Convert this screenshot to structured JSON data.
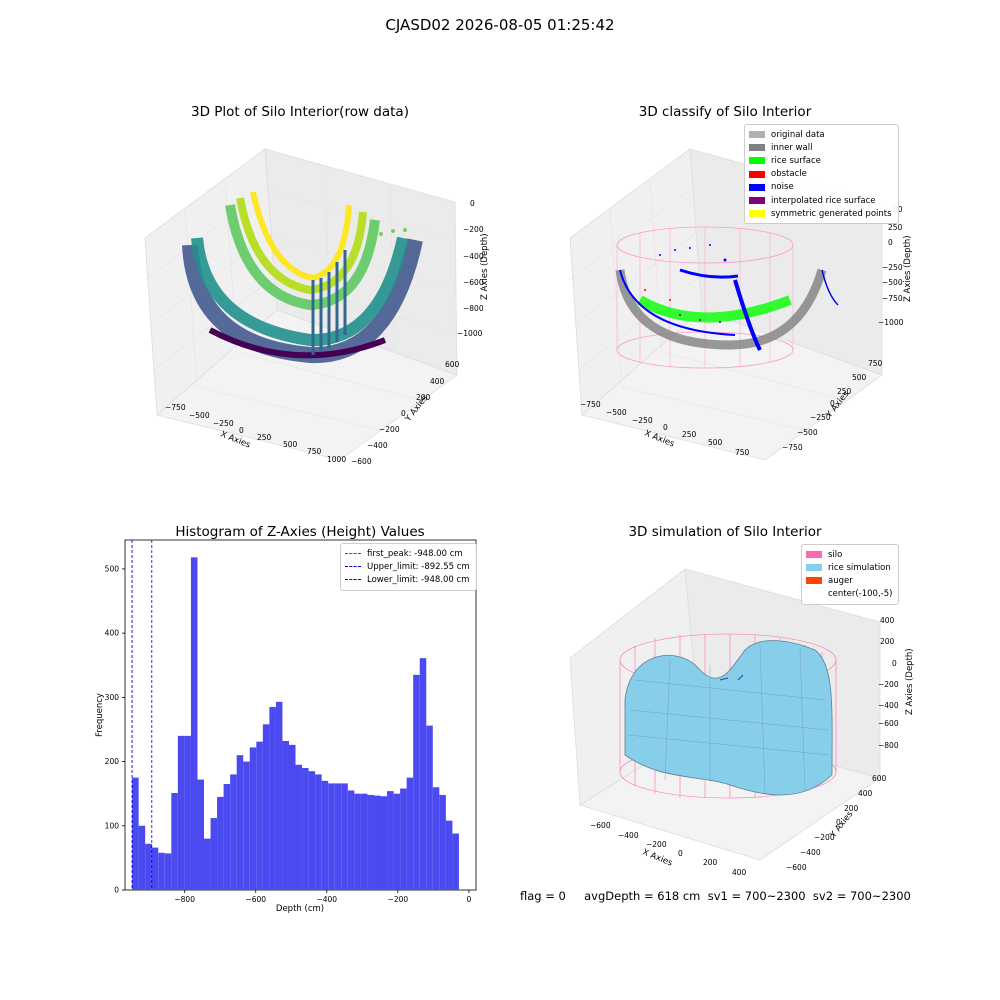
{
  "suptitle": "CJASD02 2026-08-05 01:25:42",
  "status_text": "flag = 0     avgDepth = 618 cm  sv1 = 700~2300  sv2 = 700~2300",
  "panel_tl": {
    "title": "3D Plot of Silo Interior(row data)",
    "xlabel": "X Axies",
    "ylabel": "Y Axies",
    "zlabel": "Z Axies (Depth)",
    "xticks": [
      "−750",
      "−500",
      "−250",
      "0",
      "250",
      "500",
      "750",
      "1000"
    ],
    "yticks": [
      "−600",
      "−400",
      "−200",
      "0",
      "200",
      "400",
      "600"
    ],
    "zticks": [
      "0",
      "−200",
      "−400",
      "−600",
      "−800",
      "−1000"
    ]
  },
  "panel_tr": {
    "title": "3D classify of Silo Interior",
    "xlabel": "X Axies",
    "ylabel": "Y Axies",
    "zlabel": "Z Axies (Depth)",
    "xticks": [
      "−750",
      "−500",
      "−250",
      "0",
      "250",
      "500",
      "750"
    ],
    "yticks": [
      "750",
      "500",
      "250",
      "0",
      "−250",
      "−500",
      "−750"
    ],
    "zticks": [
      "250",
      "0",
      "−250",
      "−500",
      "−750",
      "−1000"
    ],
    "ztick_partial": "00",
    "legend": [
      {
        "label": "original data",
        "color": "#b0b0b0"
      },
      {
        "label": "inner wall",
        "color": "#808080"
      },
      {
        "label": "rice surface",
        "color": "#00ff00"
      },
      {
        "label": "obstacle",
        "color": "#ff0000"
      },
      {
        "label": "noise",
        "color": "#0000ff"
      },
      {
        "label": "interpolated rice surface",
        "color": "#800080"
      },
      {
        "label": "symmetric generated points",
        "color": "#ffff00"
      }
    ]
  },
  "panel_br": {
    "title": "3D simulation of Silo Interior",
    "xlabel": "X Axies",
    "ylabel": "Y Axies",
    "zlabel": "Z Axies (Depth)",
    "xticks": [
      "−600",
      "−400",
      "−200",
      "0",
      "200",
      "400"
    ],
    "yticks": [
      "600",
      "400",
      "200",
      "0",
      "−200",
      "−400",
      "−600"
    ],
    "zticks": [
      "400",
      "200",
      "0",
      "−200",
      "−400",
      "−600",
      "−800"
    ],
    "legend": [
      {
        "label": "silo",
        "color": "#ff69b4"
      },
      {
        "label": "rice simulation",
        "color": "#87ceeb"
      },
      {
        "label": "auger",
        "color": "#ff4500"
      },
      {
        "label": "center(-100,-5)",
        "color": ""
      }
    ]
  },
  "chart_data": [
    {
      "type": "bar",
      "title": "Histogram of Z-Axies (Height) Values",
      "xlabel": "Depth (cm)",
      "ylabel": "Frequency",
      "xlim": [
        -968,
        20
      ],
      "ylim": [
        0,
        545
      ],
      "xticks": [
        -800,
        -600,
        -400,
        -200,
        0
      ],
      "yticks": [
        0,
        100,
        200,
        300,
        400,
        500
      ],
      "bar_color": "#4a4af0",
      "bin_start": -948,
      "bin_width": 18.4,
      "values": [
        175,
        100,
        72,
        66,
        58,
        57,
        151,
        240,
        240,
        518,
        172,
        80,
        112,
        145,
        165,
        180,
        210,
        200,
        222,
        231,
        258,
        285,
        293,
        232,
        226,
        195,
        190,
        185,
        180,
        170,
        166,
        166,
        166,
        155,
        150,
        150,
        148,
        147,
        146,
        154,
        150,
        158,
        175,
        335,
        361,
        256,
        160,
        148,
        108,
        88
      ],
      "vlines": [
        {
          "x": -948.0,
          "color": "#ff0000",
          "label": "first_peak: -948.00 cm"
        },
        {
          "x": -892.55,
          "color": "#0000cc",
          "label": "Upper_limit: -892.55 cm"
        },
        {
          "x": -948.0,
          "color": "#0000cc",
          "label": "Lower_limit: -948.00 cm"
        }
      ],
      "legend_position": "top-right"
    }
  ]
}
